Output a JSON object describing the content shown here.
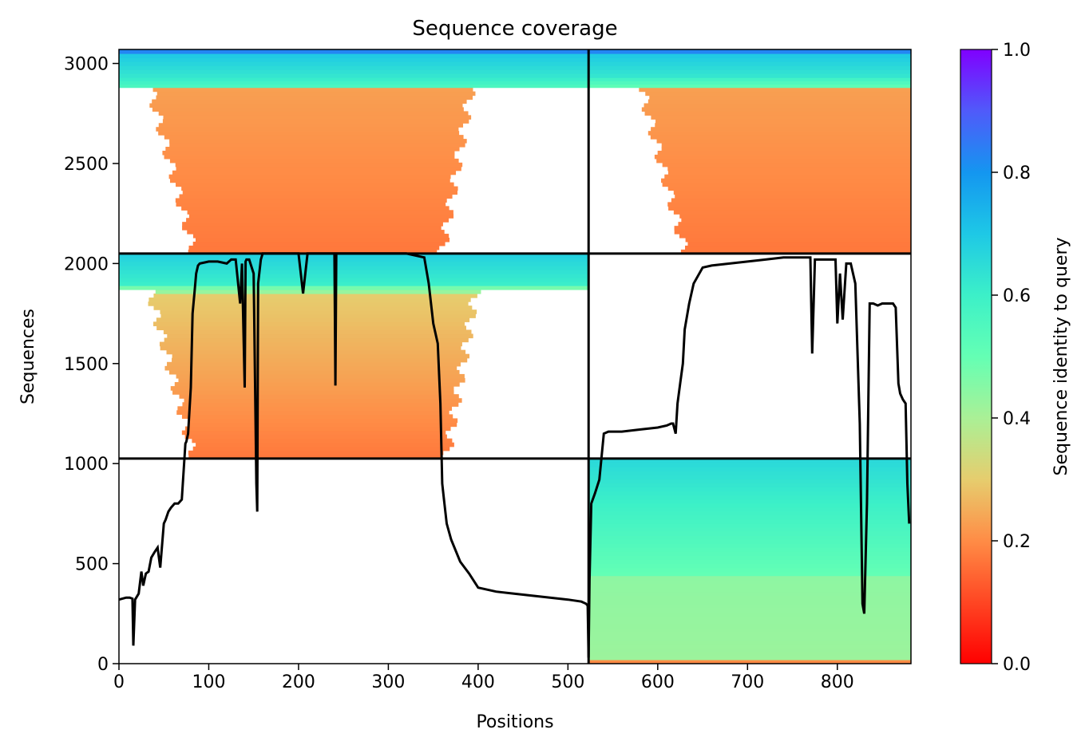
{
  "chart_data": {
    "type": "heatmap",
    "title": "Sequence coverage",
    "xlabel": "Positions",
    "ylabel": "Sequences",
    "xlim": [
      0,
      882
    ],
    "ylim": [
      0,
      3070
    ],
    "x_ticks": [
      0,
      100,
      200,
      300,
      400,
      500,
      600,
      700,
      800
    ],
    "y_ticks": [
      0,
      500,
      1000,
      1500,
      2000,
      2500,
      3000
    ],
    "colorbar": {
      "label": "Sequence identity to query",
      "range": [
        0,
        1
      ],
      "ticks": [
        0.0,
        0.2,
        0.4,
        0.6,
        0.8,
        1.0
      ],
      "colormap": "rainbow_r"
    },
    "chain_boundary_x": 523,
    "row_boundaries_y": [
      1025,
      2050
    ],
    "blocks": [
      {
        "x0": 0,
        "x1": 523,
        "y0": 2050,
        "y1": 3070,
        "coverage_start": 83,
        "coverage_end": 360,
        "bands": [
          {
            "y0": 2050,
            "y1": 2880,
            "identity_bottom": 0.17,
            "identity_top": 0.23
          },
          {
            "y0": 2880,
            "y1": 2930,
            "identity_bottom": 0.55,
            "identity_top": 0.62
          },
          {
            "y0": 2930,
            "y1": 3050,
            "identity_bottom": 0.62,
            "identity_top": 0.7
          },
          {
            "y0": 3050,
            "y1": 3070,
            "identity_bottom": 0.8,
            "identity_top": 0.85
          }
        ]
      },
      {
        "x0": 523,
        "x1": 882,
        "y0": 2050,
        "y1": 3070,
        "coverage_start": 630,
        "coverage_end": 882,
        "bands": [
          {
            "y0": 2050,
            "y1": 2880,
            "identity_bottom": 0.17,
            "identity_top": 0.23
          },
          {
            "y0": 2880,
            "y1": 2930,
            "identity_bottom": 0.5,
            "identity_top": 0.6
          },
          {
            "y0": 2930,
            "y1": 3050,
            "identity_bottom": 0.62,
            "identity_top": 0.7
          },
          {
            "y0": 3050,
            "y1": 3070,
            "identity_bottom": 0.8,
            "identity_top": 0.85
          }
        ]
      },
      {
        "x0": 0,
        "x1": 523,
        "y0": 1025,
        "y1": 2050,
        "coverage_start": 83,
        "coverage_end": 365,
        "bands": [
          {
            "y0": 1025,
            "y1": 1850,
            "identity_bottom": 0.17,
            "identity_top": 0.3
          },
          {
            "y0": 1850,
            "y1": 1890,
            "identity_bottom": 0.4,
            "identity_top": 0.5
          },
          {
            "y0": 1890,
            "y1": 2050,
            "identity_bottom": 0.6,
            "identity_top": 0.68
          }
        ]
      },
      {
        "x0": 523,
        "x1": 882,
        "y0": 0,
        "y1": 1025,
        "coverage_start": 523,
        "coverage_end": 882,
        "bands": [
          {
            "y0": 0,
            "y1": 20,
            "identity_bottom": 0.2,
            "identity_top": 0.2
          },
          {
            "y0": 20,
            "y1": 440,
            "identity_bottom": 0.42,
            "identity_top": 0.44
          },
          {
            "y0": 440,
            "y1": 1025,
            "identity_bottom": 0.5,
            "identity_top": 0.66
          }
        ]
      }
    ],
    "coverage_line": {
      "x": [
        0,
        8,
        12,
        15,
        16,
        18,
        22,
        25,
        27,
        30,
        33,
        36,
        40,
        43,
        46,
        50,
        52,
        55,
        58,
        62,
        66,
        70,
        74,
        75,
        77,
        80,
        82,
        84,
        86,
        88,
        90,
        100,
        110,
        120,
        125,
        130,
        135,
        137,
        140,
        141,
        142,
        145,
        150,
        153,
        154,
        155,
        158,
        160,
        165,
        170,
        180,
        200,
        205,
        210,
        220,
        240,
        241,
        242,
        245,
        260,
        280,
        300,
        320,
        340,
        345,
        350,
        355,
        358,
        360,
        362,
        365,
        370,
        380,
        390,
        400,
        420,
        440,
        460,
        480,
        500,
        515,
        520,
        522,
        523,
        524,
        526,
        530,
        535,
        540,
        545,
        560,
        580,
        600,
        610,
        615,
        617,
        620,
        622,
        625,
        628,
        630,
        635,
        640,
        650,
        660,
        680,
        700,
        720,
        740,
        760,
        770,
        772,
        775,
        780,
        790,
        798,
        800,
        803,
        806,
        810,
        815,
        820,
        825,
        828,
        830,
        833,
        836,
        840,
        845,
        850,
        858,
        862,
        865,
        868,
        870,
        873,
        876,
        878,
        880,
        882
      ],
      "y": [
        320,
        330,
        330,
        325,
        90,
        320,
        350,
        460,
        390,
        450,
        460,
        530,
        560,
        580,
        480,
        700,
        720,
        760,
        780,
        800,
        800,
        820,
        1100,
        1110,
        1150,
        1380,
        1750,
        1850,
        1950,
        1990,
        2000,
        2010,
        2010,
        2000,
        2020,
        2020,
        1800,
        2000,
        1380,
        2010,
        2020,
        2020,
        1950,
        900,
        760,
        1900,
        2020,
        2050,
        2050,
        2050,
        2050,
        2050,
        1850,
        2050,
        2050,
        2050,
        1390,
        2050,
        2050,
        2050,
        2050,
        2050,
        2050,
        2030,
        1900,
        1700,
        1600,
        1300,
        900,
        820,
        700,
        620,
        510,
        450,
        380,
        360,
        350,
        340,
        330,
        320,
        310,
        300,
        290,
        30,
        420,
        800,
        850,
        920,
        1150,
        1160,
        1160,
        1170,
        1180,
        1190,
        1200,
        1200,
        1150,
        1300,
        1400,
        1500,
        1670,
        1800,
        1900,
        1980,
        1990,
        2000,
        2010,
        2020,
        2030,
        2030,
        2030,
        1550,
        2020,
        2020,
        2020,
        2020,
        1700,
        1950,
        1720,
        2000,
        2000,
        1900,
        1200,
        300,
        250,
        800,
        1800,
        1800,
        1790,
        1800,
        1800,
        1800,
        1780,
        1400,
        1350,
        1320,
        1300,
        900,
        700
      ]
    }
  }
}
